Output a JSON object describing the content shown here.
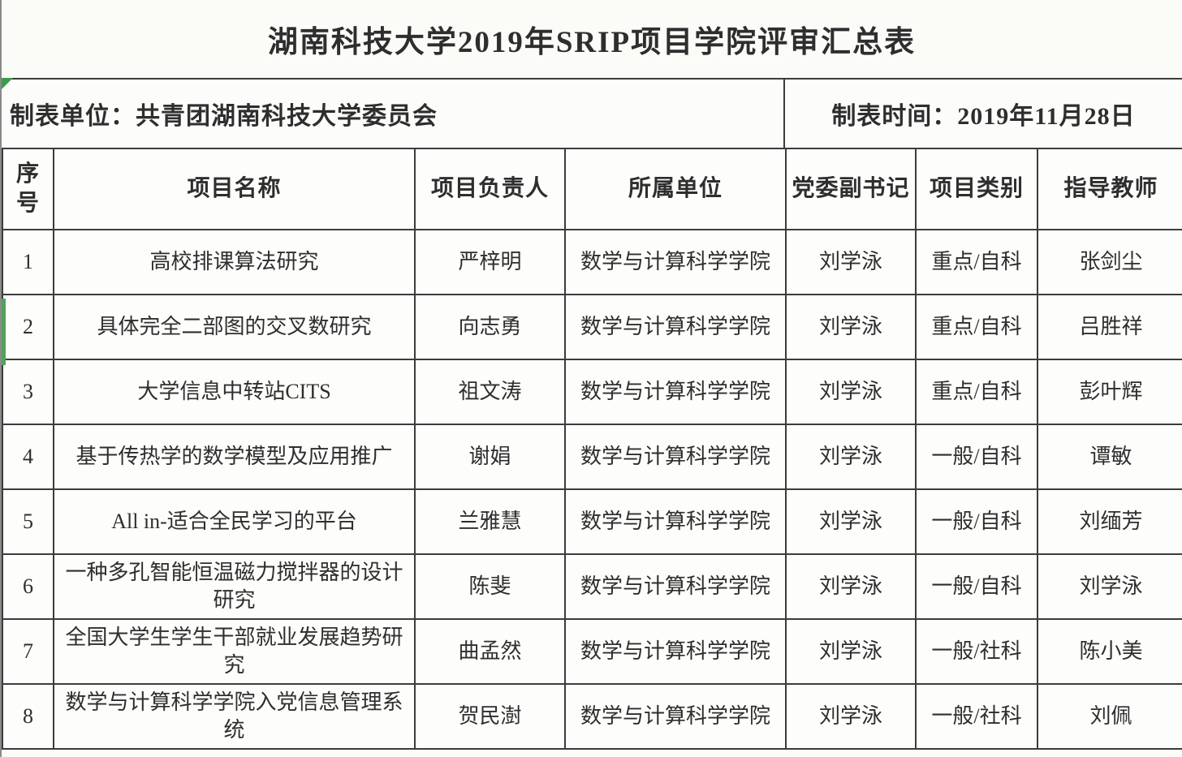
{
  "title": "湖南科技大学2019年SRIP项目学院评审汇总表",
  "meta": {
    "unit_label": "制表单位：共青团湖南科技大学委员会",
    "date_label": "制表时间：2019年11月28日"
  },
  "table": {
    "headers": [
      "序号",
      "项目名称",
      "项目负责人",
      "所属单位",
      "党委副书记",
      "项目类别",
      "指导教师"
    ],
    "rows": [
      [
        "1",
        "高校排课算法研究",
        "严梓明",
        "数学与计算科学学院",
        "刘学泳",
        "重点/自科",
        "张剑尘"
      ],
      [
        "2",
        "具体完全二部图的交叉数研究",
        "向志勇",
        "数学与计算科学学院",
        "刘学泳",
        "重点/自科",
        "吕胜祥"
      ],
      [
        "3",
        "大学信息中转站CITS",
        "祖文涛",
        "数学与计算科学学院",
        "刘学泳",
        "重点/自科",
        "彭叶辉"
      ],
      [
        "4",
        "基于传热学的数学模型及应用推广",
        "谢娟",
        "数学与计算科学学院",
        "刘学泳",
        "一般/自科",
        "谭敏"
      ],
      [
        "5",
        "All in-适合全民学习的平台",
        "兰雅慧",
        "数学与计算科学学院",
        "刘学泳",
        "一般/自科",
        "刘缅芳"
      ],
      [
        "6",
        "一种多孔智能恒温磁力搅拌器的设计研究",
        "陈斐",
        "数学与计算科学学院",
        "刘学泳",
        "一般/自科",
        "刘学泳"
      ],
      [
        "7",
        "全国大学生学生干部就业发展趋势研究",
        "曲孟然",
        "数学与计算科学学院",
        "刘学泳",
        "一般/社科",
        "陈小美"
      ],
      [
        "8",
        "数学与计算科学学院入党信息管理系统",
        "贺民澍",
        "数学与计算科学学院",
        "刘学泳",
        "一般/社科",
        "刘佩"
      ]
    ]
  },
  "colors": {
    "border": "#3c3c3c",
    "text": "#2e2e2e",
    "background": "#fbfbf8",
    "green_accent": "#3f9b4b"
  }
}
